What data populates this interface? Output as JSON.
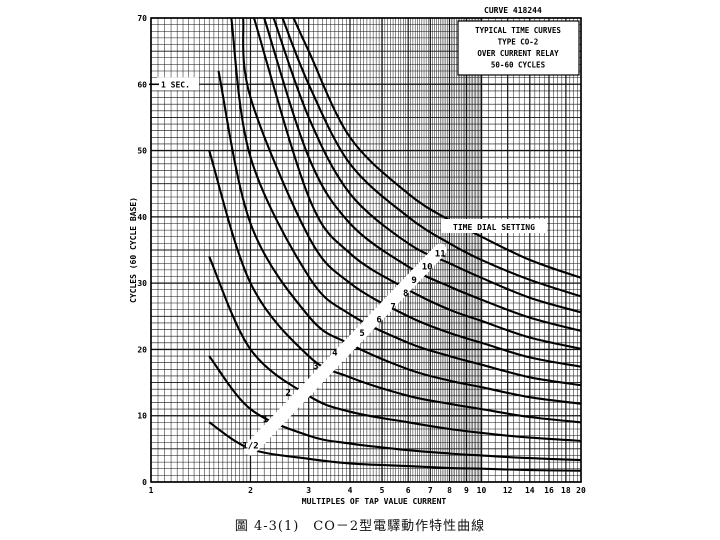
{
  "chart_data": {
    "type": "line",
    "xscale": "log",
    "xlim": [
      1,
      20
    ],
    "ylim": [
      0,
      70
    ],
    "xlabel": "MULTIPLES OF TAP VALUE CURRENT",
    "ylabel": "CYCLES (60 CYCLE BASE)",
    "x_ticks": [
      1,
      2,
      3,
      4,
      5,
      6,
      7,
      8,
      9,
      10,
      12,
      14,
      16,
      18,
      20
    ],
    "x_tick_labels": [
      "1",
      "2",
      "3",
      "4",
      "5",
      "6",
      "7",
      "8",
      "9",
      "10",
      "12",
      "14",
      "16",
      "18",
      "20"
    ],
    "y_ticks": [
      0,
      10,
      20,
      30,
      40,
      50,
      60,
      70
    ],
    "y_tick_labels": [
      "0",
      "10",
      "20",
      "30",
      "40",
      "50",
      "60",
      "70"
    ],
    "curve_id": "CURVE 418244",
    "title_lines": [
      "TYPICAL TIME CURVES",
      "TYPE CO-2",
      "OVER CURRENT RELAY",
      "50-60 CYCLES"
    ],
    "annotation_1sec": "1 SEC.",
    "annotation_1sec_y": 60,
    "dial_setting_label": "TIME DIAL SETTING",
    "dial_band": {
      "start": [
        2,
        5
      ],
      "end": [
        7.5,
        35
      ]
    },
    "series": [
      {
        "name": "1/2",
        "label_x": 2.0,
        "label_y": 5.5,
        "x": [
          1.5,
          2,
          3,
          4,
          6,
          8,
          10,
          14,
          20
        ],
        "y": [
          9,
          5,
          3.5,
          2.8,
          2.4,
          2.1,
          2,
          1.8,
          1.7
        ]
      },
      {
        "name": "1",
        "label_x": 2.22,
        "label_y": 9.5,
        "x": [
          1.5,
          2,
          3,
          4,
          6,
          8,
          10,
          14,
          20
        ],
        "y": [
          19,
          11,
          7,
          5.8,
          4.8,
          4.3,
          4,
          3.6,
          3.3
        ]
      },
      {
        "name": "2",
        "label_x": 2.6,
        "label_y": 13.5,
        "x": [
          1.5,
          2,
          3,
          4,
          6,
          8,
          10,
          14,
          20
        ],
        "y": [
          34,
          20,
          13,
          10.6,
          9,
          8,
          7.4,
          6.7,
          6.2
        ]
      },
      {
        "name": "3",
        "label_x": 3.15,
        "label_y": 17.5,
        "x": [
          1.5,
          2,
          3,
          4,
          6,
          8,
          10,
          14,
          20
        ],
        "y": [
          50,
          30,
          19,
          15.8,
          13,
          11.8,
          11,
          9.8,
          9
        ]
      },
      {
        "name": "4",
        "label_x": 3.6,
        "label_y": 19.5,
        "x": [
          1.6,
          2,
          3,
          4,
          6,
          8,
          10,
          14,
          20
        ],
        "y": [
          62,
          39,
          25,
          20.8,
          17,
          15.3,
          14.3,
          12.8,
          11.8
        ]
      },
      {
        "name": "5",
        "label_x": 4.35,
        "label_y": 22.5,
        "x": [
          1.75,
          2,
          3,
          4,
          6,
          8,
          10,
          14,
          20
        ],
        "y": [
          70,
          49,
          31,
          25.3,
          21,
          19,
          17.7,
          15.8,
          14.6
        ]
      },
      {
        "name": "6",
        "label_x": 4.9,
        "label_y": 24.5,
        "x": [
          1.9,
          2,
          3,
          4,
          6,
          8,
          10,
          14,
          20
        ],
        "y": [
          70,
          58,
          37,
          30,
          25,
          22.5,
          21,
          18.8,
          17.4
        ]
      },
      {
        "name": "7",
        "label_x": 5.4,
        "label_y": 26.5,
        "x": [
          2.05,
          3,
          4,
          6,
          8,
          10,
          14,
          20
        ],
        "y": [
          70,
          43,
          34.5,
          29,
          26,
          24.3,
          21.8,
          20.1
        ]
      },
      {
        "name": "8",
        "label_x": 5.9,
        "label_y": 28.5,
        "x": [
          2.2,
          3,
          4,
          6,
          8,
          10,
          14,
          20
        ],
        "y": [
          70,
          49,
          39,
          32.5,
          29.5,
          27.5,
          24.8,
          22.8
        ]
      },
      {
        "name": "9",
        "label_x": 6.25,
        "label_y": 30.5,
        "x": [
          2.35,
          3,
          4,
          6,
          8,
          10,
          14,
          20
        ],
        "y": [
          70,
          55,
          43.5,
          36,
          33,
          30.8,
          27.8,
          25.6
        ]
      },
      {
        "name": "10",
        "label_x": 6.85,
        "label_y": 32.5,
        "x": [
          2.5,
          3,
          4,
          6,
          8,
          10,
          14,
          20
        ],
        "y": [
          70,
          60,
          48,
          40,
          36,
          33.5,
          30.5,
          28
        ]
      },
      {
        "name": "11",
        "label_x": 7.5,
        "label_y": 34.5,
        "x": [
          2.7,
          3,
          4,
          6,
          8,
          10,
          14,
          20
        ],
        "y": [
          70,
          65,
          52,
          43.5,
          39.5,
          37,
          33.5,
          30.8
        ]
      }
    ]
  },
  "caption": "圖 4-3(1)　CO－2型電驛動作特性曲線"
}
